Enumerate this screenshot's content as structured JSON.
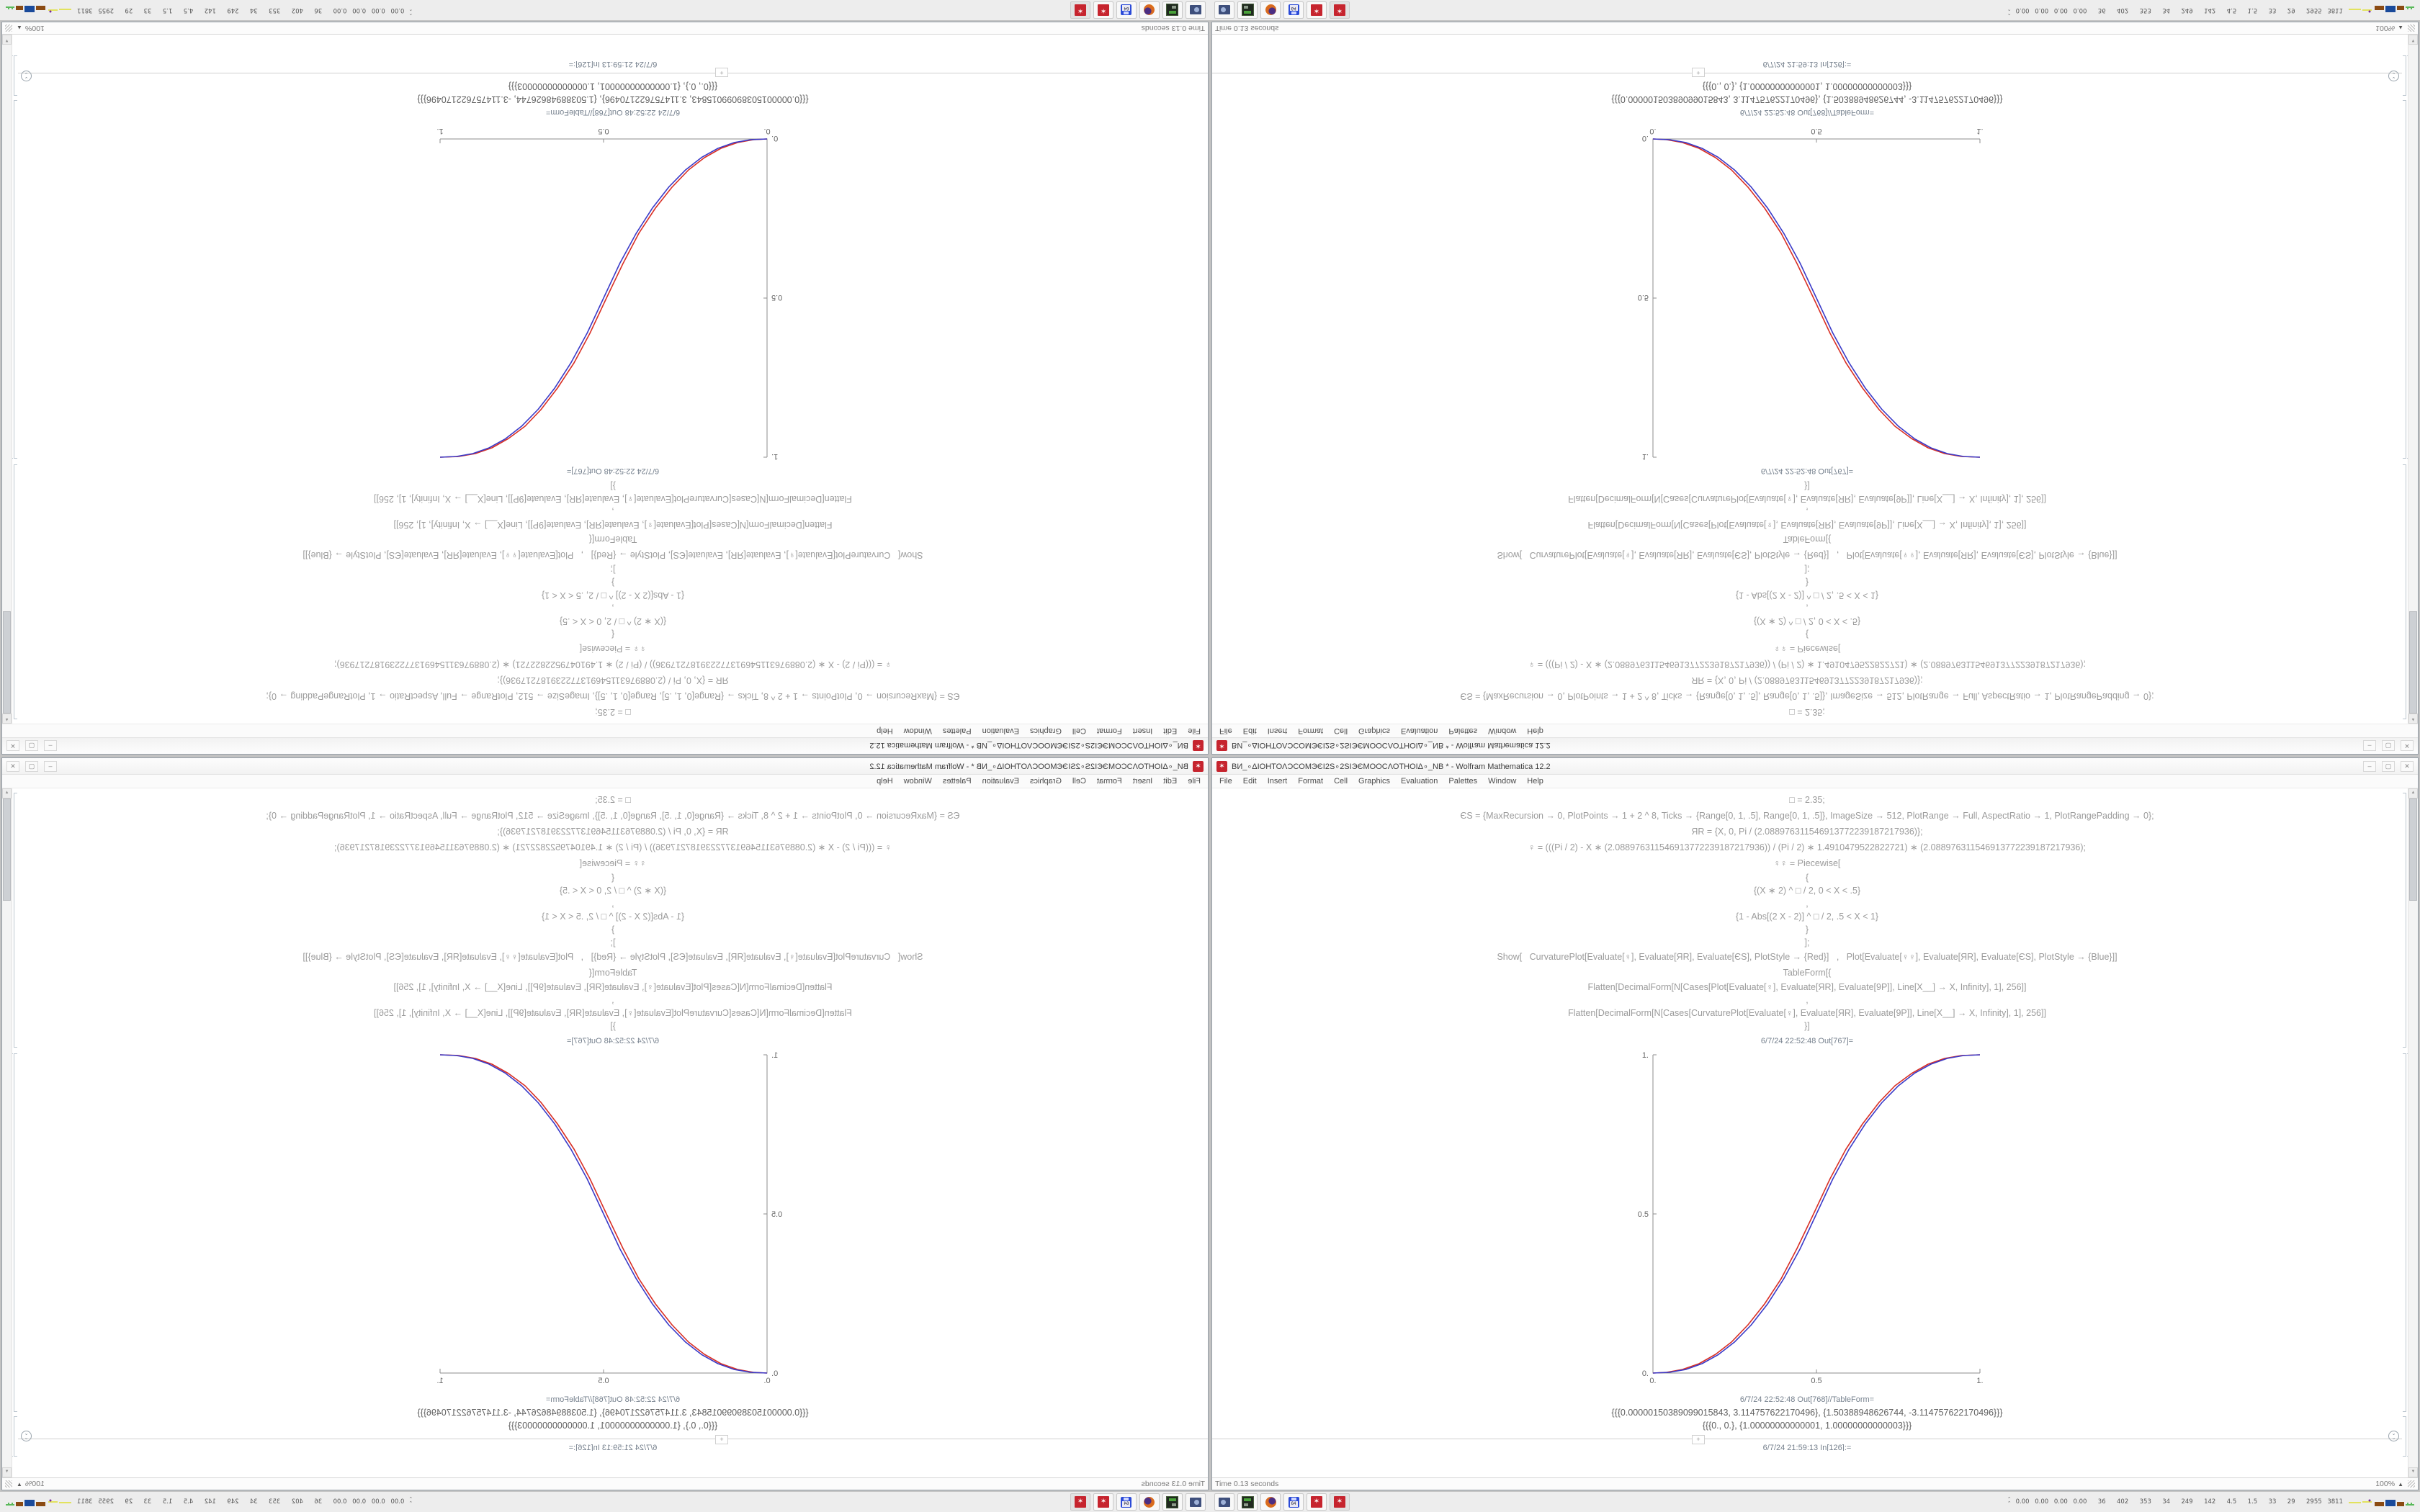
{
  "quadrants": [
    {
      "pos": "top-left",
      "transform": "rotate-180"
    },
    {
      "pos": "top-right",
      "transform": "flip-vertical"
    },
    {
      "pos": "bottom-left",
      "transform": "flip-horizontal"
    },
    {
      "pos": "bottom-right",
      "transform": "none"
    }
  ],
  "desktop": {
    "window": {
      "title": "ВИ_∘ΔΙΟΗΤΟΛϽCOMЭЄΙ2Ѕ∘2ЅΙЭЄMOOϹΛΟΤΗΟΙΔ∘_NB * - Wolfram Mathematica 12.2",
      "controls": {
        "minimize": "–",
        "maximize": "▢",
        "close": "✕"
      },
      "menu": [
        "File",
        "Edit",
        "Insert",
        "Format",
        "Cell",
        "Graphics",
        "Evaluation",
        "Palettes",
        "Window",
        "Help"
      ],
      "notebook": {
        "code_lines": [
          "□ = 2.35;",
          "ЄS = {MaxRecursion → 0, PlotPoints → 1 + 2 ^ 8, Ticks → {Range[0, 1, .5], Range[0, 1, .5]}, ImageSize → 512, PlotRange → Full, AspectRatio → 1, PlotRangePadding → 0};",
          "ЯR = {X, 0, Pi / (2.088976311546913772239187217936)};",
          "♀ = (((Pi / 2) - X ∗ (2.088976311546913772239187217936)) / (Pi / 2) ∗ 1.4910479522822721) ∗ (2.088976311546913772239187217936);",
          "♀♀ = Piecewise[",
          "{",
          "{(X ∗ 2) ^ □ / 2, 0 < X < .5}",
          ",",
          "{1 - Abs[(2 X - 2)] ^ □ / 2, .5 < X < 1}",
          "}",
          "];",
          "Show[   CurvaturePlot[Evaluate[♀], Evaluate[ЯR], Evaluate[ЄS], PlotStyle → {Red}]   ,   Plot[Evaluate[♀♀], Evaluate[ЯR], Evaluate[ЄS], PlotStyle → {Blue}]]",
          "TableForm[{",
          "Flatten[DecimalForm[N[Cases[Plot[Evaluate[♀], Evaluate[ЯR], Evaluate[9P]], Line[X__] → X, Infinity], 1], 256]]",
          ",",
          "Flatten[DecimalForm[N[Cases[CurvaturePlot[Evaluate[♀], Evaluate[ЯR], Evaluate[9P]], Line[X__] → X, Infinity], 1], 256]]",
          "}]"
        ],
        "out_label_plot": "6/7/24 22:52:48 Out[767]=",
        "out_label_table": "6/7/24 22:52:48 Out[768]//TableForm=",
        "table_rows": [
          "{{{0.00000150389099015843, 3.114757622170496}, {1.50388948626744, -3.114757622170496}}}",
          "{{{0., 0.}, {1.00000000000001, 1.00000000000003}}}"
        ],
        "insert_plus": "+",
        "next_cell_label": "6/7/24 21:59:13 In[126]:="
      },
      "status": {
        "left": "Time 0.13 seconds",
        "zoom": "100%"
      }
    },
    "taskbar": {
      "buttons": [
        {
          "name": "display-settings"
        },
        {
          "name": "package-manager"
        },
        {
          "name": "firefox"
        },
        {
          "name": "floppy-64"
        },
        {
          "name": "mathematica-1"
        },
        {
          "name": "mathematica-2"
        }
      ],
      "floppy_label": "64",
      "tray_text": "0.00 0.00 0.00 0.00  36  402  353  34  249  142  4.5  1.5  33  29  2955 3811"
    }
  },
  "chart_data": {
    "type": "line",
    "title": "",
    "xlabel": "",
    "ylabel": "",
    "xlim": [
      0,
      1
    ],
    "ylim": [
      0,
      1
    ],
    "grid": false,
    "legend": "none",
    "x": [
      0,
      0.05,
      0.1,
      0.15,
      0.2,
      0.25,
      0.3,
      0.35,
      0.4,
      0.45,
      0.5,
      0.55,
      0.6,
      0.65,
      0.7,
      0.75,
      0.8,
      0.85,
      0.9,
      0.95,
      1
    ],
    "series": [
      {
        "name": "CurvaturePlot (Red)",
        "color": "#d92f25",
        "values": [
          0,
          0.003,
          0.014,
          0.033,
          0.065,
          0.106,
          0.162,
          0.23,
          0.312,
          0.405,
          0.52,
          0.625,
          0.72,
          0.8,
          0.862,
          0.912,
          0.948,
          0.974,
          0.99,
          0.998,
          1
        ]
      },
      {
        "name": "Plot (Blue)",
        "color": "#3a3ac8",
        "values": [
          0,
          0.002,
          0.011,
          0.03,
          0.058,
          0.098,
          0.15,
          0.216,
          0.296,
          0.39,
          0.5,
          0.61,
          0.704,
          0.784,
          0.85,
          0.902,
          0.942,
          0.97,
          0.989,
          0.998,
          1
        ]
      }
    ],
    "tick_labels": {
      "x": [
        "0.",
        "0.5",
        "1."
      ],
      "y": [
        "1.",
        "0.5",
        "0."
      ]
    }
  }
}
